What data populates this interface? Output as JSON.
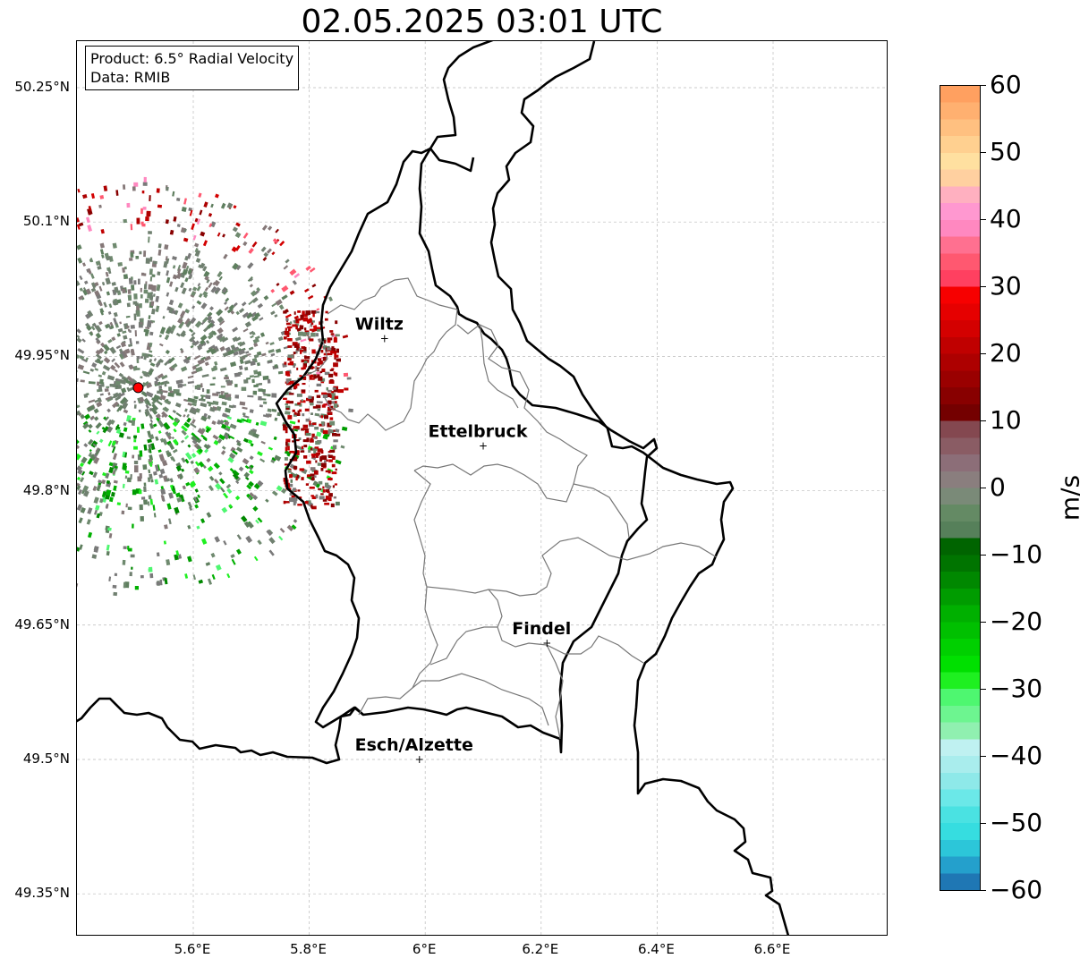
{
  "title": "02.05.2025 03:01 UTC",
  "info": {
    "product": "Product: 6.5° Radial Velocity",
    "data": "Data: RMIB"
  },
  "lat_ticks": [
    "50.25°N",
    "50.1°N",
    "49.95°N",
    "49.8°N",
    "49.65°N",
    "49.5°N",
    "49.35°N"
  ],
  "lon_ticks": [
    "5.6°E",
    "5.8°E",
    "6°E",
    "6.2°E",
    "6.4°E",
    "6.6°E"
  ],
  "cities": [
    {
      "name": "Wiltz",
      "lon": 5.93,
      "lat": 49.97
    },
    {
      "name": "Ettelbruck",
      "lon": 6.1,
      "lat": 49.85
    },
    {
      "name": "Findel",
      "lon": 6.21,
      "lat": 49.63
    },
    {
      "name": "Esch/Alzette",
      "lon": 5.99,
      "lat": 49.5
    }
  ],
  "radar_site": {
    "lon": 5.505,
    "lat": 49.915
  },
  "colorbar": {
    "unit": "m/s",
    "min": -60,
    "max": 60,
    "tick_labels": [
      "60",
      "50",
      "40",
      "30",
      "20",
      "10",
      "0",
      "−10",
      "−20",
      "−30",
      "−40",
      "−50",
      "−60"
    ],
    "colors_bottom_to_top": [
      "#1f77b4",
      "#24a0cc",
      "#2cc6d9",
      "#36dde0",
      "#4ae2e2",
      "#6be8e8",
      "#8ee9e9",
      "#a9eded",
      "#bff1f1",
      "#90f0b0",
      "#6df590",
      "#4ef770",
      "#1ef020",
      "#00e000",
      "#00d000",
      "#00c000",
      "#00b000",
      "#009c00",
      "#008800",
      "#007400",
      "#006400",
      "#56805a",
      "#648a64",
      "#7a8a78",
      "#8a7e7e",
      "#8c6e78",
      "#8a5c64",
      "#844850",
      "#740000",
      "#880000",
      "#9a0000",
      "#ad0000",
      "#c00000",
      "#d40000",
      "#e60000",
      "#f70000",
      "#ff4060",
      "#ff5870",
      "#ff7090",
      "#ff88c0",
      "#ff98d0",
      "#ffb0c0",
      "#ffd0a0",
      "#ffe0a0",
      "#ffd090",
      "#ffc080",
      "#ffb070",
      "#ffa060"
    ]
  }
}
